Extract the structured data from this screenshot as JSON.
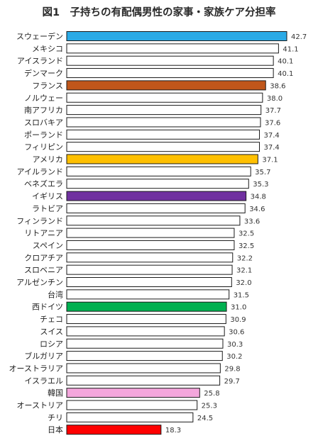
{
  "chart_data": {
    "type": "bar",
    "orientation": "horizontal",
    "title": "図1　子持ちの有配偶男性の家事・家族ケア分担率",
    "xlabel": "",
    "ylabel": "",
    "xlim": [
      0,
      42.7
    ],
    "grid": false,
    "legend": "none",
    "categories": [
      "スウェーデン",
      "メキシコ",
      "アイスランド",
      "デンマーク",
      "フランス",
      "ノルウェー",
      "南アフリカ",
      "スロバキア",
      "ポーランド",
      "フィリピン",
      "アメリカ",
      "アイルランド",
      "ベネズエラ",
      "イギリス",
      "ラトビア",
      "フィンランド",
      "リトアニア",
      "スペイン",
      "クロアチア",
      "スロベニア",
      "アルゼンチン",
      "台湾",
      "西ドイツ",
      "チェコ",
      "スイス",
      "ロシア",
      "ブルガリア",
      "オーストラリア",
      "イスラエル",
      "韓国",
      "オーストリア",
      "チリ",
      "日本"
    ],
    "values": [
      42.7,
      41.1,
      40.1,
      40.1,
      38.6,
      38.0,
      37.7,
      37.6,
      37.4,
      37.4,
      37.1,
      35.7,
      35.3,
      34.8,
      34.6,
      33.6,
      32.5,
      32.5,
      32.2,
      32.1,
      32.0,
      31.5,
      31.0,
      30.9,
      30.6,
      30.3,
      30.2,
      29.8,
      29.7,
      25.8,
      25.3,
      24.5,
      18.3
    ],
    "value_labels": [
      "42.7",
      "41.1",
      "40.1",
      "40.1",
      "38.6",
      "38.0",
      "37.7",
      "37.6",
      "37.4",
      "37.4",
      "37.1",
      "35.7",
      "35.3",
      "34.8",
      "34.6",
      "33.6",
      "32.5",
      "32.5",
      "32.2",
      "32.1",
      "32.0",
      "31.5",
      "31.0",
      "30.9",
      "30.6",
      "30.3",
      "30.2",
      "29.8",
      "29.7",
      "25.8",
      "25.3",
      "24.5",
      "18.3"
    ],
    "bar_colors": [
      "#2aaae6",
      "#ffffff",
      "#ffffff",
      "#ffffff",
      "#c0561a",
      "#ffffff",
      "#ffffff",
      "#ffffff",
      "#ffffff",
      "#ffffff",
      "#ffc000",
      "#ffffff",
      "#ffffff",
      "#7030a0",
      "#ffffff",
      "#ffffff",
      "#ffffff",
      "#ffffff",
      "#ffffff",
      "#ffffff",
      "#ffffff",
      "#ffffff",
      "#00b050",
      "#ffffff",
      "#ffffff",
      "#ffffff",
      "#ffffff",
      "#ffffff",
      "#ffffff",
      "#f4a6dc",
      "#ffffff",
      "#ffffff",
      "#ff0000"
    ],
    "bar_outline": "#1a1a1a"
  }
}
